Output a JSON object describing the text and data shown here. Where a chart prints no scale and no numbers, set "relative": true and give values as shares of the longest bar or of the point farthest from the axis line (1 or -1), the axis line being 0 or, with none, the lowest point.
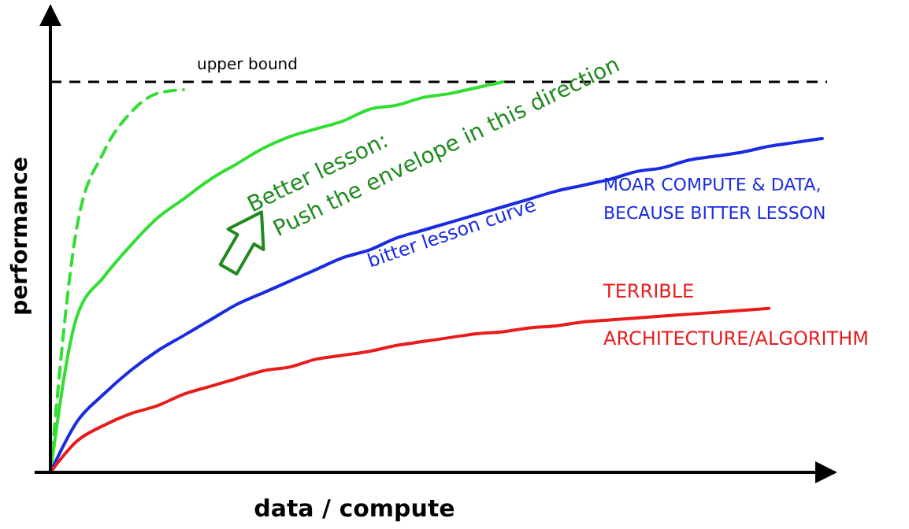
{
  "chart_data": {
    "type": "line",
    "relative": true,
    "xlabel": "data / compute",
    "ylabel": "performance",
    "categories": [
      null,
      null,
      null,
      null,
      null,
      null,
      null,
      null,
      null,
      null,
      null,
      null,
      null,
      null,
      null,
      null,
      null,
      null,
      null,
      null,
      null,
      null,
      null,
      null,
      null,
      null,
      null,
      null,
      null,
      null
    ],
    "series": [
      {
        "color": "#33dd33",
        "line_style": "dashed",
        "values": [
          0,
          0.63,
          0.82,
          0.92,
          0.97,
          0.98,
          null,
          null,
          null,
          null,
          null,
          null,
          null,
          null,
          null,
          null,
          null,
          null,
          null,
          null,
          null,
          null,
          null,
          null,
          null,
          null,
          null,
          null,
          null,
          null
        ]
      },
      {
        "color": "#33dd33",
        "line_style": "solid",
        "values": [
          0,
          0.4,
          0.5,
          0.58,
          0.65,
          0.7,
          0.75,
          0.79,
          0.83,
          0.86,
          0.88,
          0.9,
          0.93,
          0.94,
          0.96,
          0.97,
          0.985,
          1,
          null,
          null,
          null,
          null,
          null,
          null,
          null,
          null,
          null,
          null,
          null,
          null
        ]
      },
      {
        "name": "bitter lesson curve",
        "color": "#1a2be0",
        "line_style": "solid",
        "values": [
          0,
          0.13,
          0.2,
          0.26,
          0.31,
          0.35,
          0.39,
          0.43,
          0.46,
          0.49,
          0.52,
          0.55,
          0.57,
          0.6,
          0.62,
          0.64,
          0.66,
          0.68,
          0.7,
          0.72,
          0.735,
          0.75,
          0.77,
          0.78,
          0.8,
          0.81,
          0.82,
          0.835,
          0.845,
          0.855
        ]
      },
      {
        "name": "TERRIBLE ARCHITECTURE/ALGORITHM",
        "color": "#e81c1c",
        "line_style": "solid",
        "values": [
          0,
          0.08,
          0.12,
          0.15,
          0.17,
          0.2,
          0.22,
          0.24,
          0.26,
          0.27,
          0.29,
          0.3,
          0.31,
          0.325,
          0.335,
          0.345,
          0.355,
          0.36,
          0.37,
          0.375,
          0.385,
          0.39,
          0.395,
          0.4,
          0.405,
          0.41,
          0.415,
          0.42,
          null,
          null
        ]
      }
    ],
    "ref_lines": [
      {
        "axis": "y",
        "value": 1,
        "label": "upper bound",
        "color": "#000000",
        "line_style": "dashed"
      }
    ],
    "annotations": [
      "MOAR COMPUTE & DATA,\nBECAUSE BITTER LESSON",
      "Better lesson:\nPush the envelope in this direction"
    ]
  }
}
